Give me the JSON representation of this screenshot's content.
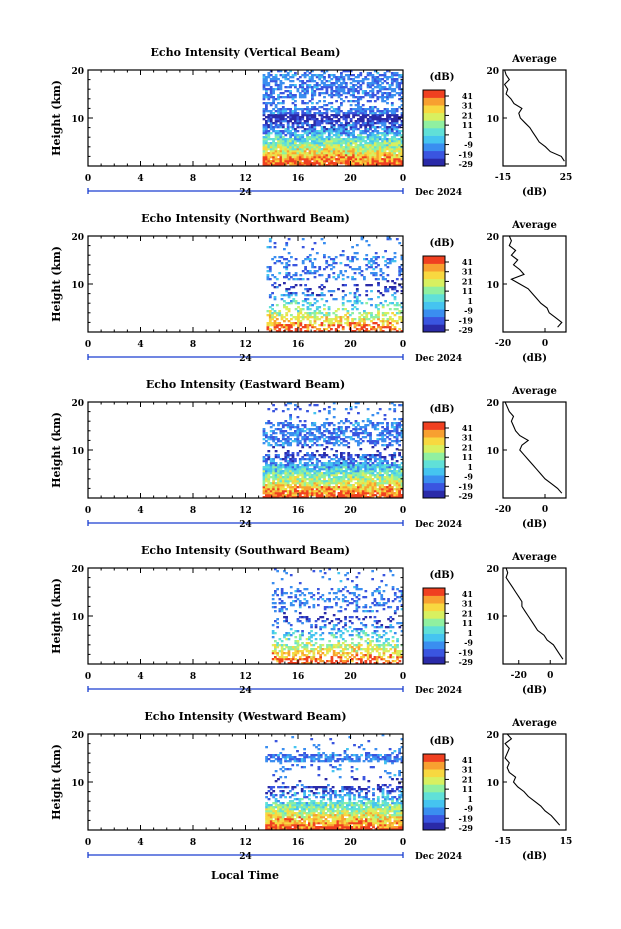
{
  "figure": {
    "x_axis_label": "Local Time",
    "date_label": "Dec 2024",
    "day_label": "24",
    "x_ticks": [
      "0",
      "4",
      "8",
      "12",
      "16",
      "20",
      "0"
    ],
    "y_ticks": [
      "20",
      "10"
    ],
    "y_axis_label": "Height (km)",
    "colorbar_unit": "(dB)",
    "colorbar_ticks": [
      "41",
      "31",
      "21",
      "11",
      "1",
      "-9",
      "-19",
      "-29"
    ],
    "average_title": "Average",
    "average_unit": "(dB)"
  },
  "colors": {
    "scale": [
      "#2a2aa8",
      "#3a55e0",
      "#3a8ef0",
      "#45c4f0",
      "#60e0d8",
      "#90f0a0",
      "#d8f060",
      "#f8d840",
      "#f8a030",
      "#f04020"
    ]
  },
  "chart_data": [
    {
      "type": "heatmap",
      "title": "Echo Intensity (Vertical Beam)",
      "xlabel": "Local Time",
      "ylabel": "Height (km)",
      "xlim": [
        0,
        24
      ],
      "ylim": [
        0,
        20
      ],
      "data_start_hour": 13.3,
      "profile": {
        "xlim": [
          -15,
          25
        ],
        "x_ticks": [
          "-15",
          "25"
        ],
        "heights": [
          1,
          2,
          3,
          4,
          5,
          6,
          7,
          8,
          9,
          10,
          11,
          12,
          13,
          14,
          15,
          16,
          17,
          18,
          19,
          20
        ],
        "values": [
          24,
          22,
          15,
          12,
          8,
          6,
          4,
          2,
          -1,
          -4,
          -5,
          -3,
          -8,
          -10,
          -13,
          -12,
          -14,
          -11,
          -13,
          -14
        ]
      }
    },
    {
      "type": "heatmap",
      "title": "Echo Intensity (Northward Beam)",
      "xlabel": "Local Time",
      "ylabel": "Height (km)",
      "xlim": [
        0,
        24
      ],
      "ylim": [
        0,
        20
      ],
      "data_start_hour": 13.6,
      "profile": {
        "xlim": [
          -20,
          10
        ],
        "x_ticks": [
          "-20",
          "0"
        ],
        "heights": [
          1,
          2,
          3,
          4,
          5,
          6,
          7,
          8,
          9,
          10,
          11,
          12,
          13,
          14,
          15,
          16,
          17,
          18,
          19,
          20
        ],
        "values": [
          6,
          8,
          5,
          2,
          1,
          -2,
          -4,
          -6,
          -8,
          -12,
          -16,
          -10,
          -12,
          -15,
          -13,
          -16,
          -14,
          -17,
          -16,
          -17
        ]
      }
    },
    {
      "type": "heatmap",
      "title": "Echo Intensity (Eastward Beam)",
      "xlabel": "Local Time",
      "ylabel": "Height (km)",
      "xlim": [
        0,
        24
      ],
      "ylim": [
        0,
        20
      ],
      "data_start_hour": 13.3,
      "profile": {
        "xlim": [
          -20,
          10
        ],
        "x_ticks": [
          "-20",
          "0"
        ],
        "heights": [
          1,
          2,
          3,
          4,
          5,
          6,
          7,
          8,
          9,
          10,
          11,
          12,
          13,
          14,
          15,
          16,
          17,
          18,
          19,
          20
        ],
        "values": [
          8,
          6,
          3,
          0,
          -2,
          -4,
          -6,
          -8,
          -10,
          -12,
          -11,
          -8,
          -12,
          -14,
          -15,
          -16,
          -15,
          -17,
          -18,
          -19
        ]
      }
    },
    {
      "type": "heatmap",
      "title": "Echo Intensity (Southward Beam)",
      "xlabel": "Local Time",
      "ylabel": "Height (km)",
      "xlim": [
        0,
        24
      ],
      "ylim": [
        0,
        20
      ],
      "data_start_hour": 14.0,
      "profile": {
        "xlim": [
          -30,
          10
        ],
        "x_ticks": [
          "-20",
          "0"
        ],
        "heights": [
          1,
          2,
          3,
          4,
          5,
          6,
          7,
          8,
          9,
          10,
          11,
          12,
          13,
          14,
          15,
          16,
          17,
          18,
          19,
          20
        ],
        "values": [
          8,
          6,
          4,
          2,
          -2,
          -4,
          -8,
          -10,
          -12,
          -14,
          -16,
          -18,
          -18,
          -20,
          -22,
          -24,
          -26,
          -28,
          -27,
          -28
        ]
      }
    },
    {
      "type": "heatmap",
      "title": "Echo Intensity (Westward Beam)",
      "xlabel": "Local Time",
      "ylabel": "Height (km)",
      "xlim": [
        0,
        24
      ],
      "ylim": [
        0,
        20
      ],
      "data_start_hour": 13.5,
      "profile": {
        "xlim": [
          -15,
          15
        ],
        "x_ticks": [
          "-15",
          "15"
        ],
        "heights": [
          1,
          2,
          3,
          4,
          5,
          6,
          7,
          8,
          9,
          10,
          11,
          12,
          13,
          14,
          15,
          16,
          17,
          18,
          19,
          20
        ],
        "values": [
          12,
          10,
          8,
          5,
          3,
          0,
          -3,
          -5,
          -8,
          -10,
          -9,
          -12,
          -13,
          -12,
          -14,
          -13,
          -12,
          -14,
          -11,
          -13
        ]
      }
    }
  ]
}
